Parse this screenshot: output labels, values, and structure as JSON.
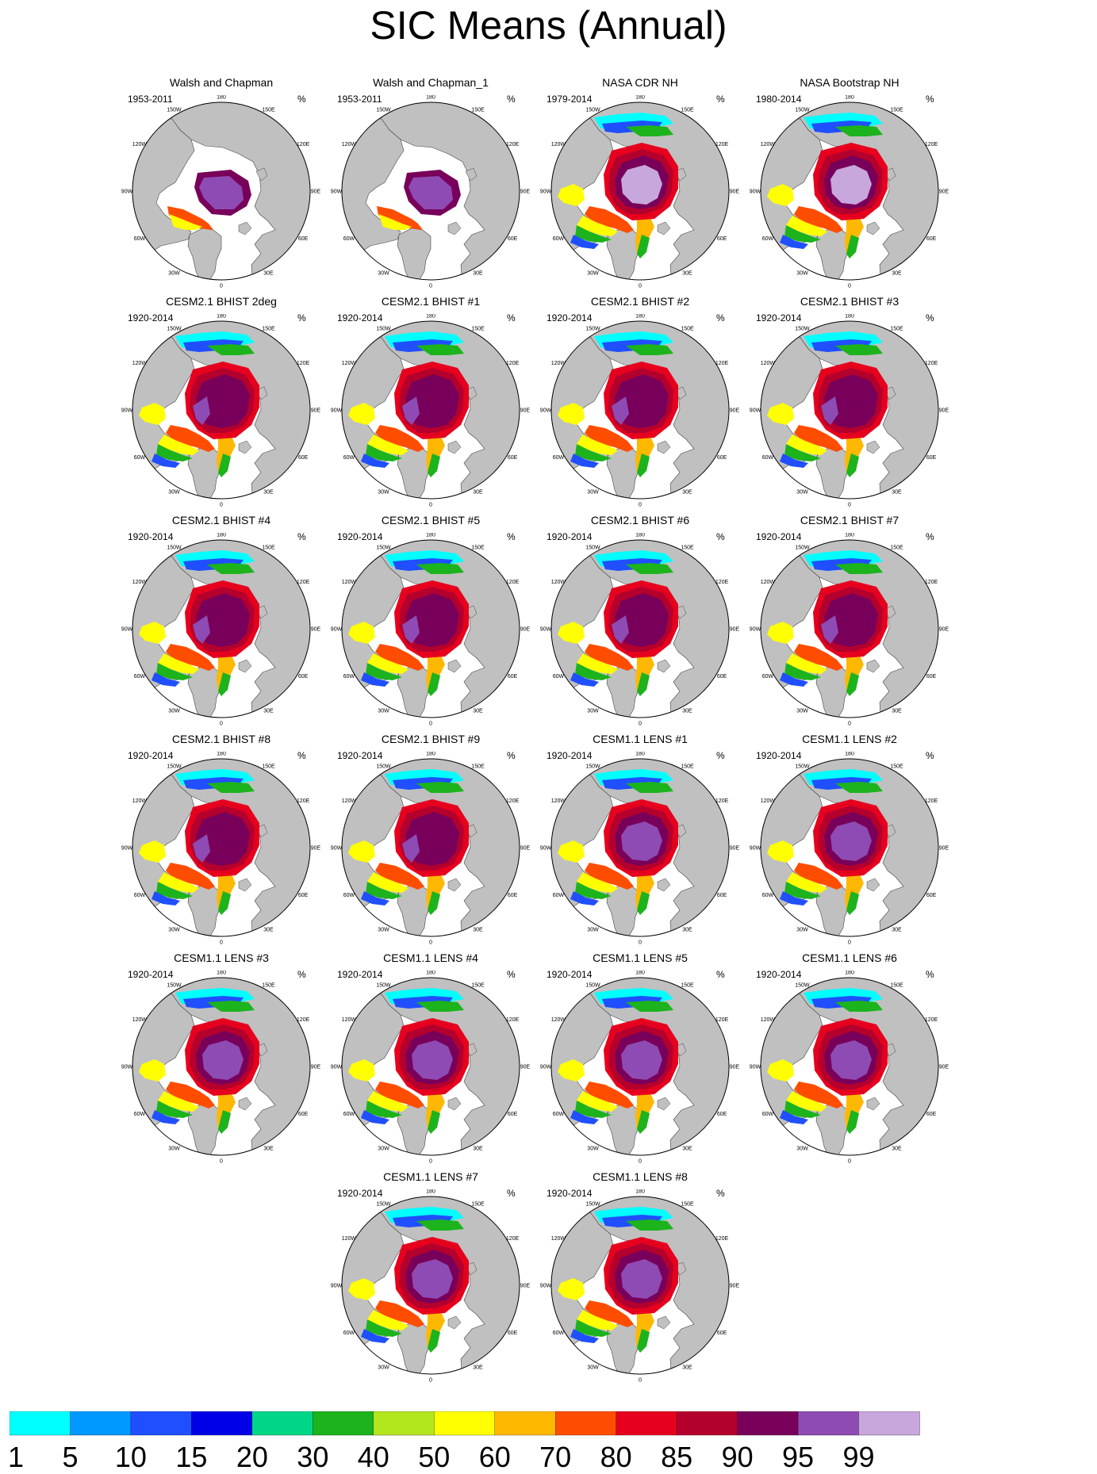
{
  "chart_data": {
    "type": "polar_map_panels",
    "title": "SIC Means (Annual)",
    "units": "%",
    "region": "Northern Hemisphere polar stereographic",
    "longitude_labels": [
      "180",
      "150E",
      "120E",
      "90E",
      "60E",
      "30E",
      "0",
      "30W",
      "60W",
      "90W",
      "120W",
      "150W"
    ],
    "colorbar": {
      "levels": [
        "1",
        "5",
        "10",
        "15",
        "20",
        "30",
        "40",
        "50",
        "60",
        "70",
        "80",
        "85",
        "90",
        "95",
        "99"
      ],
      "colors": [
        "#00ffff",
        "#0099ff",
        "#1f4fff",
        "#0000e6",
        "#00d688",
        "#1cb31c",
        "#b4e61e",
        "#ffff00",
        "#ffb800",
        "#ff4d00",
        "#e6001e",
        "#b4002d",
        "#78005a",
        "#8e4bb4",
        "#c8a8dc"
      ]
    },
    "panels": [
      {
        "title": "Walsh and Chapman",
        "years": "1953-2011",
        "style": "obs_wc"
      },
      {
        "title": "Walsh and Chapman_1",
        "years": "1953-2011",
        "style": "obs_wc"
      },
      {
        "title": "NASA CDR NH",
        "years": "1979-2014",
        "style": "obs_nasa"
      },
      {
        "title": "NASA Bootstrap NH",
        "years": "1980-2014",
        "style": "obs_nasa"
      },
      {
        "title": "CESM2.1 BHIST 2deg",
        "years": "1920-2014",
        "style": "cesm2"
      },
      {
        "title": "CESM2.1 BHIST #1",
        "years": "1920-2014",
        "style": "cesm2"
      },
      {
        "title": "CESM2.1 BHIST #2",
        "years": "1920-2014",
        "style": "cesm2"
      },
      {
        "title": "CESM2.1 BHIST #3",
        "years": "1920-2014",
        "style": "cesm2"
      },
      {
        "title": "CESM2.1 BHIST #4",
        "years": "1920-2014",
        "style": "cesm2"
      },
      {
        "title": "CESM2.1 BHIST #5",
        "years": "1920-2014",
        "style": "cesm2"
      },
      {
        "title": "CESM2.1 BHIST #6",
        "years": "1920-2014",
        "style": "cesm2"
      },
      {
        "title": "CESM2.1 BHIST #7",
        "years": "1920-2014",
        "style": "cesm2"
      },
      {
        "title": "CESM2.1 BHIST #8",
        "years": "1920-2014",
        "style": "cesm2"
      },
      {
        "title": "CESM2.1 BHIST #9",
        "years": "1920-2014",
        "style": "cesm2"
      },
      {
        "title": "CESM1.1 LENS #1",
        "years": "1920-2014",
        "style": "lens"
      },
      {
        "title": "CESM1.1 LENS #2",
        "years": "1920-2014",
        "style": "lens"
      },
      {
        "title": "CESM1.1 LENS #3",
        "years": "1920-2014",
        "style": "lens"
      },
      {
        "title": "CESM1.1 LENS #4",
        "years": "1920-2014",
        "style": "lens"
      },
      {
        "title": "CESM1.1 LENS #5",
        "years": "1920-2014",
        "style": "lens"
      },
      {
        "title": "CESM1.1 LENS #6",
        "years": "1920-2014",
        "style": "lens"
      },
      {
        "title": "CESM1.1 LENS #7",
        "years": "1920-2014",
        "style": "lens"
      },
      {
        "title": "CESM1.1 LENS #8",
        "years": "1920-2014",
        "style": "lens"
      }
    ]
  }
}
